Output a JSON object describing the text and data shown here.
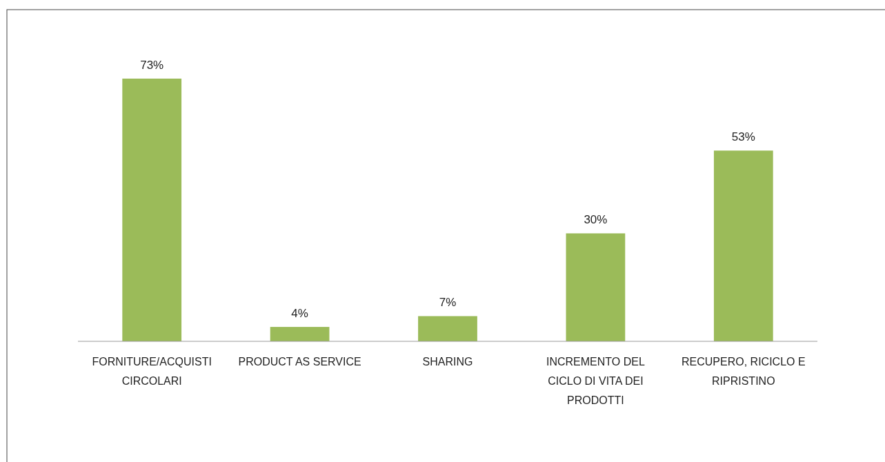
{
  "chart_data": {
    "type": "bar",
    "categories": [
      "FORNITURE/ACQUISTI CIRCOLARI",
      "PRODUCT AS SERVICE",
      "SHARING",
      "INCREMENTO DEL CICLO DI VITA DEI PRODOTTI",
      "RECUPERO, RICICLO E RIPRISTINO"
    ],
    "values": [
      73,
      4,
      7,
      30,
      53
    ],
    "value_labels": [
      "73%",
      "4%",
      "7%",
      "30%",
      "53%"
    ],
    "color": "#9bbb59"
  }
}
